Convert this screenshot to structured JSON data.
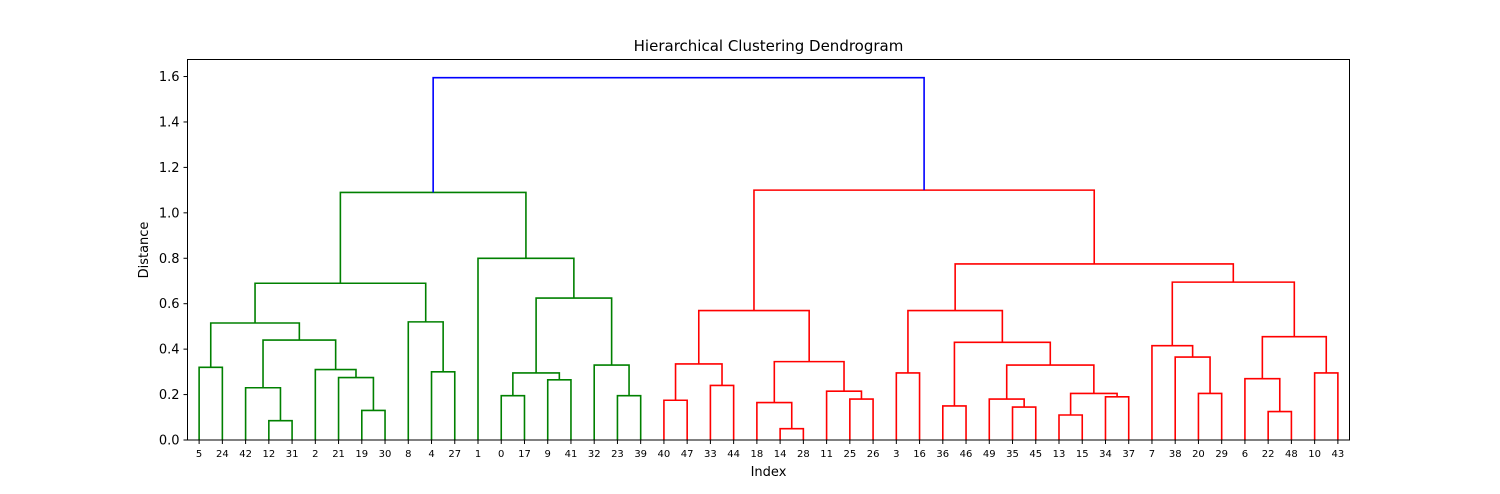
{
  "chart_data": {
    "type": "dendrogram",
    "title": "Hierarchical Clustering Dendrogram",
    "xlabel": "Index",
    "ylabel": "Distance",
    "ylim": [
      0,
      1.675
    ],
    "yticks": [
      0.0,
      0.2,
      0.4,
      0.6,
      0.8,
      1.0,
      1.2,
      1.4,
      1.6
    ],
    "ytick_labels": [
      "0.0",
      "0.2",
      "0.4",
      "0.6",
      "0.8",
      "1.0",
      "1.2",
      "1.4",
      "1.6"
    ],
    "leaf_order": [
      "5",
      "24",
      "42",
      "12",
      "31",
      "2",
      "21",
      "19",
      "30",
      "8",
      "4",
      "27",
      "1",
      "0",
      "17",
      "9",
      "41",
      "32",
      "23",
      "39",
      "40",
      "47",
      "33",
      "44",
      "18",
      "14",
      "28",
      "11",
      "25",
      "26",
      "3",
      "16",
      "36",
      "46",
      "49",
      "35",
      "45",
      "13",
      "15",
      "34",
      "37",
      "7",
      "38",
      "20",
      "29",
      "6",
      "22",
      "48",
      "10",
      "43"
    ],
    "colors": {
      "root": "#0000ff",
      "cluster_left": "#008000",
      "cluster_right": "#ff0000"
    },
    "merges": [
      {
        "l": 0,
        "r": 1,
        "h": 0.32,
        "c": "g"
      },
      {
        "l": 3,
        "r": 4,
        "h": 0.085,
        "c": "g"
      },
      {
        "l": 2,
        "r": 51,
        "h": 0.23,
        "c": "g"
      },
      {
        "l": 7,
        "r": 8,
        "h": 0.13,
        "c": "g"
      },
      {
        "l": 6,
        "r": 53,
        "h": 0.275,
        "c": "g"
      },
      {
        "l": 5,
        "r": 54,
        "h": 0.31,
        "c": "g"
      },
      {
        "l": 52,
        "r": 55,
        "h": 0.44,
        "c": "g"
      },
      {
        "l": 50,
        "r": 56,
        "h": 0.515,
        "c": "g"
      },
      {
        "l": 10,
        "r": 11,
        "h": 0.3,
        "c": "g"
      },
      {
        "l": 9,
        "r": 58,
        "h": 0.52,
        "c": "g"
      },
      {
        "l": 57,
        "r": 59,
        "h": 0.69,
        "c": "g"
      },
      {
        "l": 13,
        "r": 14,
        "h": 0.195,
        "c": "g"
      },
      {
        "l": 15,
        "r": 16,
        "h": 0.265,
        "c": "g"
      },
      {
        "l": 61,
        "r": 62,
        "h": 0.295,
        "c": "g"
      },
      {
        "l": 18,
        "r": 19,
        "h": 0.195,
        "c": "g"
      },
      {
        "l": 17,
        "r": 64,
        "h": 0.33,
        "c": "g"
      },
      {
        "l": 63,
        "r": 65,
        "h": 0.625,
        "c": "g"
      },
      {
        "l": 12,
        "r": 66,
        "h": 0.8,
        "c": "g"
      },
      {
        "l": 60,
        "r": 67,
        "h": 1.09,
        "c": "g"
      },
      {
        "l": 20,
        "r": 21,
        "h": 0.175,
        "c": "r"
      },
      {
        "l": 22,
        "r": 23,
        "h": 0.24,
        "c": "r"
      },
      {
        "l": 69,
        "r": 70,
        "h": 0.335,
        "c": "r"
      },
      {
        "l": 25,
        "r": 26,
        "h": 0.05,
        "c": "r"
      },
      {
        "l": 24,
        "r": 72,
        "h": 0.165,
        "c": "r"
      },
      {
        "l": 28,
        "r": 29,
        "h": 0.18,
        "c": "r"
      },
      {
        "l": 27,
        "r": 74,
        "h": 0.215,
        "c": "r"
      },
      {
        "l": 73,
        "r": 75,
        "h": 0.345,
        "c": "r"
      },
      {
        "l": 71,
        "r": 76,
        "h": 0.57,
        "c": "r"
      },
      {
        "l": 30,
        "r": 31,
        "h": 0.295,
        "c": "r"
      },
      {
        "l": 32,
        "r": 33,
        "h": 0.15,
        "c": "r"
      },
      {
        "l": 35,
        "r": 36,
        "h": 0.145,
        "c": "r"
      },
      {
        "l": 34,
        "r": 80,
        "h": 0.18,
        "c": "r"
      },
      {
        "l": 37,
        "r": 38,
        "h": 0.11,
        "c": "r"
      },
      {
        "l": 39,
        "r": 40,
        "h": 0.19,
        "c": "r"
      },
      {
        "l": 82,
        "r": 83,
        "h": 0.205,
        "c": "r"
      },
      {
        "l": 81,
        "r": 84,
        "h": 0.33,
        "c": "r"
      },
      {
        "l": 79,
        "r": 85,
        "h": 0.43,
        "c": "r"
      },
      {
        "l": 78,
        "r": 86,
        "h": 0.57,
        "c": "r"
      },
      {
        "l": 43,
        "r": 44,
        "h": 0.205,
        "c": "r"
      },
      {
        "l": 42,
        "r": 88,
        "h": 0.365,
        "c": "r"
      },
      {
        "l": 41,
        "r": 89,
        "h": 0.415,
        "c": "r"
      },
      {
        "l": 46,
        "r": 47,
        "h": 0.125,
        "c": "r"
      },
      {
        "l": 45,
        "r": 91,
        "h": 0.27,
        "c": "r"
      },
      {
        "l": 48,
        "r": 49,
        "h": 0.295,
        "c": "r"
      },
      {
        "l": 92,
        "r": 93,
        "h": 0.455,
        "c": "r"
      },
      {
        "l": 90,
        "r": 94,
        "h": 0.695,
        "c": "r"
      },
      {
        "l": 87,
        "r": 95,
        "h": 0.775,
        "c": "r"
      },
      {
        "l": 77,
        "r": 96,
        "h": 1.1,
        "c": "r"
      },
      {
        "l": 68,
        "r": 97,
        "h": 1.595,
        "c": "b"
      }
    ]
  }
}
